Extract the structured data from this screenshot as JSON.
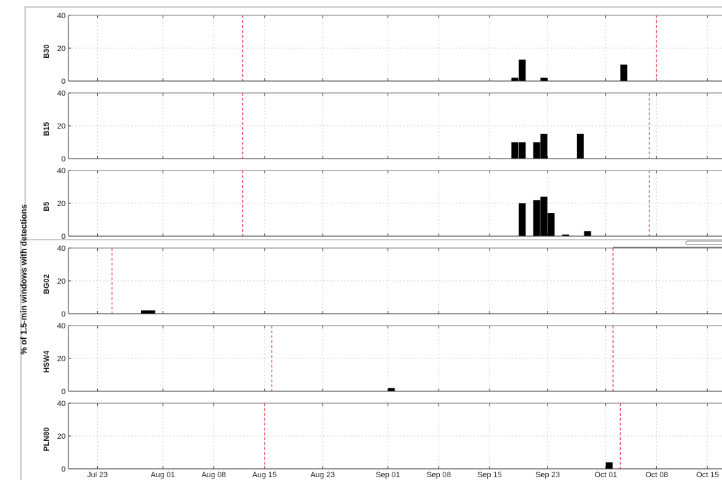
{
  "chart_data": {
    "type": "bar",
    "ylabel": "% of 1.5-min windows with detections",
    "ylim": [
      0,
      40
    ],
    "yticks": [
      0,
      20,
      40
    ],
    "x_axis_type": "date",
    "xlim": [
      "2014-07-19",
      "2014-10-17"
    ],
    "xtick_dates": [
      "2014-07-23",
      "2014-08-01",
      "2014-08-08",
      "2014-08-15",
      "2014-08-23",
      "2014-09-01",
      "2014-09-08",
      "2014-09-15",
      "2014-09-23",
      "2014-10-01",
      "2014-10-08",
      "2014-10-15"
    ],
    "xtick_labels": [
      "Jul 23",
      "Aug 01",
      "Aug 08",
      "Aug 15",
      "Aug 23",
      "Sep 01",
      "Sep 08",
      "Sep 15",
      "Sep 23",
      "Oct 01",
      "Oct 08",
      "Oct 15"
    ],
    "grid": true,
    "colors": {
      "bar": "#000000",
      "marker": "#e8485a",
      "grid": "#cfcfcf",
      "axis": "#333333"
    },
    "panels": [
      {
        "name": "B30",
        "markers": [
          "2014-08-12",
          "2014-10-08"
        ],
        "bars": [
          {
            "start": "2014-09-18",
            "end": "2014-09-19",
            "value": 2
          },
          {
            "start": "2014-09-19",
            "end": "2014-09-20",
            "value": 13
          },
          {
            "start": "2014-09-22",
            "end": "2014-09-23",
            "value": 2
          },
          {
            "start": "2014-10-03",
            "end": "2014-10-04",
            "value": 10
          }
        ]
      },
      {
        "name": "B15",
        "markers": [
          "2014-08-12",
          "2014-10-07"
        ],
        "bars": [
          {
            "start": "2014-09-18",
            "end": "2014-09-19",
            "value": 10
          },
          {
            "start": "2014-09-19",
            "end": "2014-09-20",
            "value": 10
          },
          {
            "start": "2014-09-21",
            "end": "2014-09-22",
            "value": 10
          },
          {
            "start": "2014-09-22",
            "end": "2014-09-23",
            "value": 15
          },
          {
            "start": "2014-09-27",
            "end": "2014-09-28",
            "value": 15
          }
        ]
      },
      {
        "name": "B5",
        "markers": [
          "2014-08-12",
          "2014-10-07"
        ],
        "bars": [
          {
            "start": "2014-09-19",
            "end": "2014-09-20",
            "value": 20
          },
          {
            "start": "2014-09-21",
            "end": "2014-09-22",
            "value": 22
          },
          {
            "start": "2014-09-22",
            "end": "2014-09-23",
            "value": 24
          },
          {
            "start": "2014-09-23",
            "end": "2014-09-24",
            "value": 14
          },
          {
            "start": "2014-09-25",
            "end": "2014-09-26",
            "value": 1
          },
          {
            "start": "2014-09-28",
            "end": "2014-09-29",
            "value": 3
          }
        ]
      },
      {
        "name": "BG02",
        "markers": [
          "2014-07-25",
          "2014-10-02"
        ],
        "bars": [
          {
            "start": "2014-07-29",
            "end": "2014-07-31",
            "value": 2
          }
        ]
      },
      {
        "name": "HSW4",
        "markers": [
          "2014-08-16",
          "2014-10-02"
        ],
        "bars": [
          {
            "start": "2014-09-01",
            "end": "2014-09-02",
            "value": 2
          }
        ]
      },
      {
        "name": "PLN80",
        "markers": [
          "2014-08-15",
          "2014-10-03"
        ],
        "bars": [
          {
            "start": "2014-10-01",
            "end": "2014-10-02",
            "value": 4
          }
        ]
      }
    ]
  }
}
